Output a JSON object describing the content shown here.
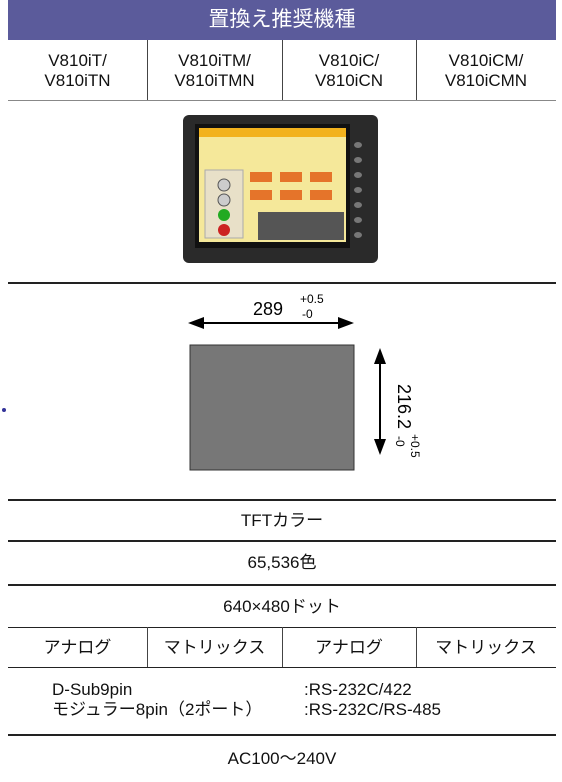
{
  "header": {
    "title": "置換え推奨機種"
  },
  "models": [
    [
      "V810iT/",
      "V810iTN"
    ],
    [
      "V810iTM/",
      "V810iTMN"
    ],
    [
      "V810iC/",
      "V810iCN"
    ],
    [
      "V810iCM/",
      "V810iCMN"
    ]
  ],
  "dimensions": {
    "width": "289",
    "width_plus": "+0.5",
    "width_minus": "-0",
    "height": "216.2",
    "height_plus": "+0.5",
    "height_minus": "-0"
  },
  "display": "TFTカラー",
  "colors": "65,536色",
  "resolution": "640×480ドット",
  "touch": [
    "アナログ",
    "マトリックス",
    "アナログ",
    "マトリックス"
  ],
  "interface": [
    [
      "D-Sub9pin",
      ":RS-232C/422"
    ],
    [
      "モジュラー8pin（2ポート）",
      ":RS-232C/RS-485"
    ]
  ],
  "power": "AC100～240V"
}
